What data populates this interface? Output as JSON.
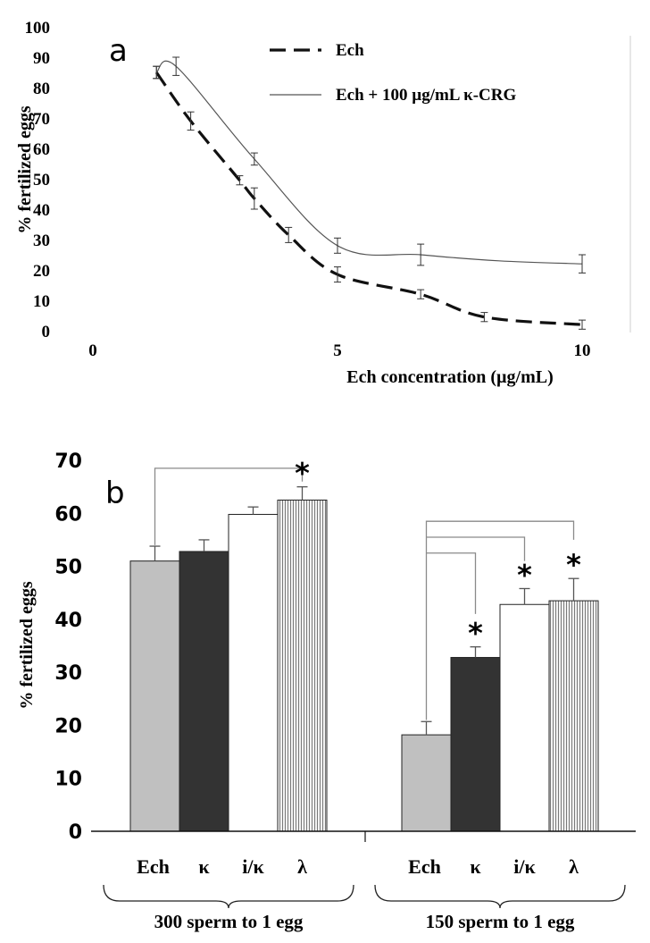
{
  "chart_data": [
    {
      "panel": "a",
      "type": "line",
      "ylabel": "% fertilized eggs",
      "xlabel": "Ech concentration (µg/mL)",
      "xlim": [
        0,
        11
      ],
      "ylim": [
        0,
        100
      ],
      "x_ticks": [
        "0",
        "5",
        "10"
      ],
      "y_ticks": [
        "0",
        "10",
        "20",
        "30",
        "40",
        "50",
        "60",
        "70",
        "80",
        "90",
        "100"
      ],
      "legend_position": "top-right",
      "series": [
        {
          "name": "Ech",
          "style": "dashed",
          "points": [
            {
              "x": 1.3,
              "y": 85,
              "err": 2
            },
            {
              "x": 2.0,
              "y": 69,
              "err": 3
            },
            {
              "x": 3.0,
              "y": 49.5,
              "err": 1.5
            },
            {
              "x": 3.3,
              "y": 43.5,
              "err": 3.5
            },
            {
              "x": 4.0,
              "y": 31.5,
              "err": 2.5
            },
            {
              "x": 5.0,
              "y": 18.5,
              "err": 2.5
            },
            {
              "x": 6.7,
              "y": 12,
              "err": 1.5
            },
            {
              "x": 8.0,
              "y": 4.5,
              "err": 1.5
            },
            {
              "x": 10.0,
              "y": 2,
              "err": 1.5
            }
          ]
        },
        {
          "name": "Ech + 100 µg/mL κ-CRG",
          "style": "solid",
          "points": [
            {
              "x": 1.3,
              "y": 85,
              "err": 2
            },
            {
              "x": 1.7,
              "y": 87,
              "err": 3
            },
            {
              "x": 3.3,
              "y": 56.5,
              "err": 2
            },
            {
              "x": 5.0,
              "y": 28,
              "err": 2.5
            },
            {
              "x": 6.7,
              "y": 25,
              "err": 3.5
            },
            {
              "x": 8.3,
              "y": 23,
              "err": 0
            },
            {
              "x": 10.0,
              "y": 22,
              "err": 3
            }
          ]
        }
      ]
    },
    {
      "panel": "b",
      "type": "bar",
      "ylabel": "% fertilized eggs",
      "ylim": [
        0,
        70
      ],
      "y_ticks": [
        "0",
        "10",
        "20",
        "30",
        "40",
        "50",
        "60",
        "70"
      ],
      "categories": [
        "Ech",
        "κ",
        "i/κ",
        "λ"
      ],
      "colors": {
        "Ech": "#c0c0c0",
        "κ": "#333333",
        "i/κ": "#ffffff",
        "λ": "#d0d0d0"
      },
      "groups": [
        {
          "label": "300 sperm to 1 egg",
          "values": [
            51,
            52.8,
            59.8,
            62.5
          ],
          "errors": [
            2.8,
            2.2,
            1.4,
            2.5
          ],
          "significant": [
            false,
            false,
            false,
            true
          ]
        },
        {
          "label": "150 sperm to 1 egg",
          "values": [
            18.2,
            32.8,
            42.8,
            43.5
          ],
          "errors": [
            2.5,
            2.0,
            3.0,
            4.2
          ],
          "significant": [
            false,
            true,
            true,
            true
          ]
        }
      ],
      "significance_marker": "*"
    }
  ]
}
